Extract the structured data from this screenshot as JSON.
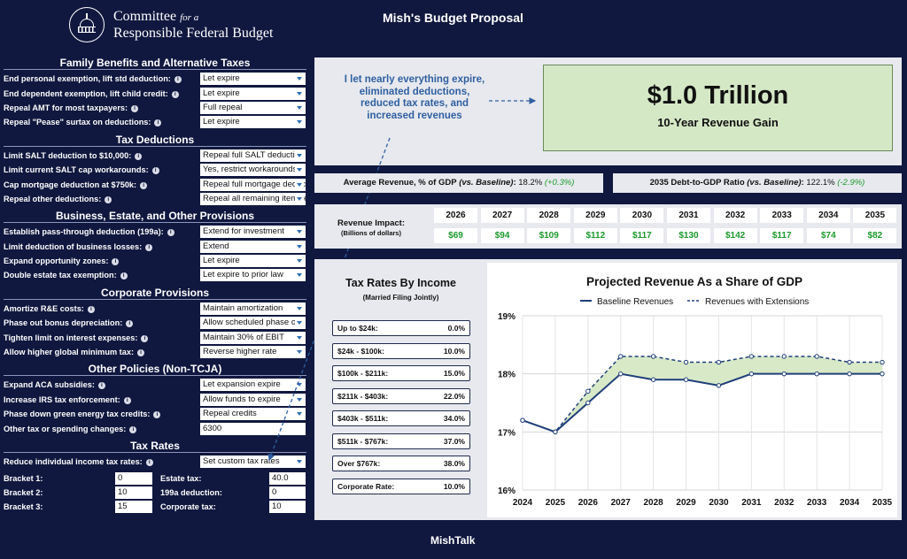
{
  "header": {
    "logo_line1": "Committee",
    "logo_line1_small": "for a",
    "logo_line2": "Responsible Federal Budget",
    "title": "Mish's Budget Proposal"
  },
  "footer": {
    "label": "MishTalk"
  },
  "sections": [
    {
      "title": "Family Benefits and Alternative Taxes",
      "rows": [
        {
          "label": "End personal exemption, lift std deduction:",
          "value": "Let expire",
          "type": "select"
        },
        {
          "label": "End dependent exemption, lift child credit:",
          "value": "Let expire",
          "type": "select"
        },
        {
          "label": "Repeal AMT for most taxpayers:",
          "value": "Full repeal",
          "type": "select"
        },
        {
          "label": "Repeal \"Pease\" surtax on deductions:",
          "value": "Let expire",
          "type": "select"
        }
      ]
    },
    {
      "title": "Tax Deductions",
      "rows": [
        {
          "label": "Limit SALT deduction to $10,000:",
          "value": "Repeal full SALT deduction",
          "type": "select"
        },
        {
          "label": "Limit current SALT cap workarounds:",
          "value": "Yes, restrict workarounds",
          "type": "select"
        },
        {
          "label": "Cap mortgage deduction at $750k:",
          "value": "Repeal full mortgage deduction",
          "type": "select"
        },
        {
          "label": "Repeal other deductions:",
          "value": "Repeal all remaining itemized",
          "type": "select"
        }
      ]
    },
    {
      "title": "Business, Estate, and Other Provisions",
      "rows": [
        {
          "label": "Establish pass-through deduction (199a):",
          "value": "Extend for investment",
          "type": "select"
        },
        {
          "label": "Limit deduction of business losses:",
          "value": "Extend",
          "type": "select"
        },
        {
          "label": "Expand opportunity zones:",
          "value": "Let expire",
          "type": "select"
        },
        {
          "label": "Double estate tax exemption:",
          "value": "Let expire to prior law",
          "type": "select"
        }
      ]
    },
    {
      "title": "Corporate Provisions",
      "rows": [
        {
          "label": "Amortize R&E costs:",
          "value": "Maintain amortization",
          "type": "select"
        },
        {
          "label": "Phase out bonus depreciation:",
          "value": "Allow scheduled phase out",
          "type": "select"
        },
        {
          "label": "Tighten limit on interest expenses:",
          "value": "Maintain 30% of EBIT",
          "type": "select"
        },
        {
          "label": "Allow higher global minimum tax:",
          "value": "Reverse higher rate",
          "type": "select"
        }
      ]
    },
    {
      "title": "Other Policies (Non-TCJA)",
      "rows": [
        {
          "label": "Expand ACA subsidies:",
          "value": "Let expansion expire",
          "type": "select"
        },
        {
          "label": "Increase IRS tax enforcement:",
          "value": "Allow funds to expire",
          "type": "select"
        },
        {
          "label": "Phase down green energy tax credits:",
          "value": "Repeal credits",
          "type": "select"
        },
        {
          "label": "Other tax or spending changes:",
          "value": "6300",
          "type": "text"
        }
      ]
    }
  ],
  "tax_rates": {
    "title": "Tax Rates",
    "reduce_label": "Reduce individual income tax rates:",
    "reduce_value": "Set custom tax rates",
    "rows": [
      {
        "a_label": "Bracket 1:",
        "a_value": "0",
        "b_label": "Estate tax:",
        "b_value": "40.0"
      },
      {
        "a_label": "Bracket 2:",
        "a_value": "10",
        "b_label": "199a deduction:",
        "b_value": "0"
      },
      {
        "a_label": "Bracket 3:",
        "a_value": "15",
        "b_label": "Corporate tax:",
        "b_value": "10"
      }
    ]
  },
  "note": "I let nearly everything expire, eliminated deductions, reduced tax rates, and increased revenues",
  "revenue_card": {
    "amount": "$1.0 Trillion",
    "caption": "10-Year Revenue Gain"
  },
  "stats": {
    "avg_label": "Average Revenue, % of GDP",
    "avg_vs": "(vs. Baseline)",
    "avg_value": "18.2%",
    "avg_delta": "(+0.3%)",
    "debt_label": "2035 Debt-to-GDP Ratio",
    "debt_vs": "(vs. Baseline)",
    "debt_value": "122.1%",
    "debt_delta": "(-2.9%)"
  },
  "impact": {
    "label": "Revenue Impact:",
    "sub": "(Billions of dollars)",
    "years": [
      "2026",
      "2027",
      "2028",
      "2029",
      "2030",
      "2031",
      "2032",
      "2033",
      "2034",
      "2035"
    ],
    "values": [
      "$69",
      "$94",
      "$109",
      "$112",
      "$117",
      "$130",
      "$142",
      "$117",
      "$74",
      "$82"
    ]
  },
  "rates_table": {
    "title": "Tax Rates By Income",
    "subtitle": "(Married Filing Jointly)",
    "rows": [
      {
        "bracket": "Up to $24k:",
        "rate": "0.0%"
      },
      {
        "bracket": "$24k - $100k:",
        "rate": "10.0%"
      },
      {
        "bracket": "$100k - $211k:",
        "rate": "15.0%"
      },
      {
        "bracket": "$211k - $403k:",
        "rate": "22.0%"
      },
      {
        "bracket": "$403k - $511k:",
        "rate": "34.0%"
      },
      {
        "bracket": "$511k - $767k:",
        "rate": "37.0%"
      },
      {
        "bracket": "Over $767k:",
        "rate": "38.0%"
      },
      {
        "bracket": "Corporate Rate:",
        "rate": "10.0%"
      }
    ]
  },
  "chart_data": {
    "type": "line",
    "title": "Projected Revenue As a Share of GDP",
    "x": [
      2024,
      2025,
      2026,
      2027,
      2028,
      2029,
      2030,
      2031,
      2032,
      2033,
      2034,
      2035
    ],
    "series": [
      {
        "name": "Baseline Revenues",
        "values": [
          17.2,
          17.0,
          17.5,
          18.0,
          17.9,
          17.9,
          17.8,
          18.0,
          18.0,
          18.0,
          18.0,
          18.0
        ],
        "color": "#1f3f7a",
        "style": "solid"
      },
      {
        "name": "Revenues with Extensions",
        "values": [
          17.2,
          17.0,
          17.7,
          18.3,
          18.3,
          18.2,
          18.2,
          18.3,
          18.3,
          18.3,
          18.2,
          18.2
        ],
        "color": "#1f3f7a",
        "style": "dashed"
      }
    ],
    "ylim": [
      16,
      19
    ],
    "yticks": [
      "16%",
      "17%",
      "18%",
      "19%"
    ],
    "fill_between": "#d8e9c8",
    "grid": true,
    "legend": "top"
  }
}
